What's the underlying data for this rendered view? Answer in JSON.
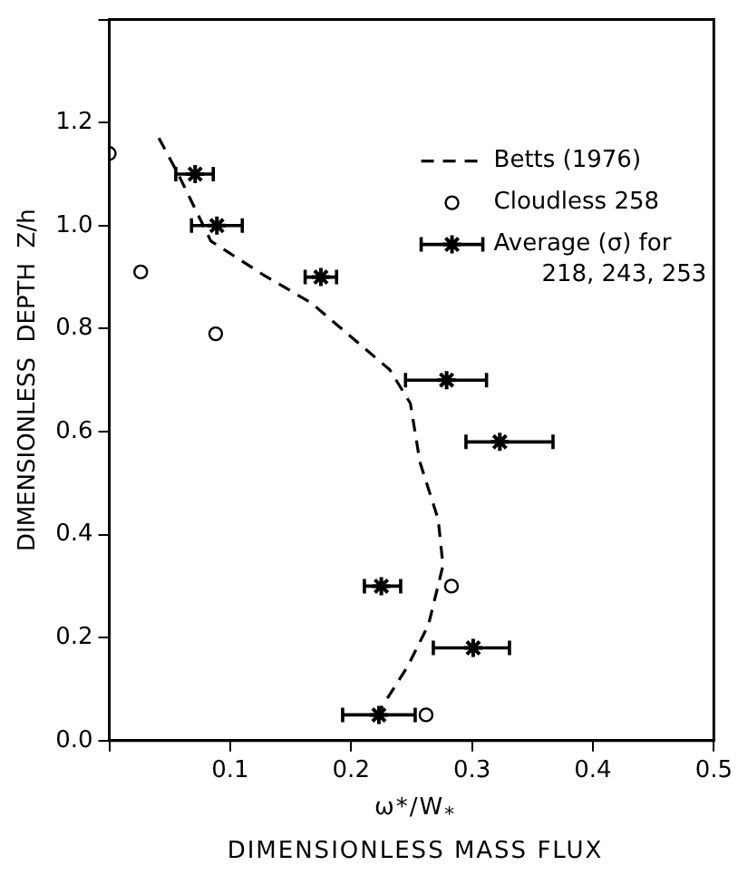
{
  "chart_data": {
    "type": "scatter",
    "xlabel": "ω*/W$_{*}$\nDIMENSIONLESS MASS FLUX",
    "ylabel": "DIMENSIONLESS  DEPTH  Z/h",
    "xlim": [
      0,
      0.5
    ],
    "xticks": [
      {
        "value": 0,
        "label": null
      },
      0.1,
      0.2,
      0.3,
      0.4,
      0.5
    ],
    "ylim": [
      0,
      1.4
    ],
    "yticks": [
      {
        "value": 0,
        "label": "0.0"
      },
      0.2,
      0.4,
      0.6,
      0.8,
      {
        "value": 1,
        "label": "1.0"
      },
      1.2,
      {
        "value": 1.4,
        "label": null
      }
    ],
    "grid": false,
    "legend": "top right",
    "series": [
      {
        "name": "Betts (1976)",
        "type": "line",
        "color": "#000000",
        "marker": "none",
        "line_style": "dashed",
        "x": [
          0.041,
          0.057,
          0.084,
          0.127,
          0.167,
          0.202,
          0.232,
          0.249,
          0.257,
          0.272,
          0.276,
          0.264,
          0.247,
          0.224
        ],
        "values": [
          1.17,
          1.1,
          0.97,
          0.905,
          0.85,
          0.78,
          0.72,
          0.655,
          0.54,
          0.43,
          0.34,
          0.225,
          0.145,
          0.06
        ]
      },
      {
        "name": "Cloudless 258",
        "type": "scatter",
        "color": "#000000",
        "marker": "circle",
        "x": [
          0.0,
          0.026,
          0.088,
          0.283,
          0.262
        ],
        "values": [
          1.14,
          0.91,
          0.79,
          0.3,
          0.05
        ]
      },
      {
        "name": "Average (σ) for 218, 243, 253",
        "type": "scatter",
        "color": "#000000",
        "marker": "cross",
        "x": [
          0.071,
          0.089,
          0.175,
          0.279,
          0.323,
          0.225,
          0.301,
          0.223
        ],
        "values": [
          1.1,
          1.0,
          0.9,
          0.7,
          0.58,
          0.3,
          0.18,
          0.05
        ],
        "xerrors": [
          [
            0.055,
            0.086
          ],
          [
            0.068,
            0.11
          ],
          [
            0.162,
            0.188
          ],
          [
            0.245,
            0.312
          ],
          [
            0.295,
            0.367
          ],
          [
            0.211,
            0.241
          ],
          [
            0.268,
            0.331
          ],
          [
            0.193,
            0.253
          ]
        ]
      }
    ]
  }
}
